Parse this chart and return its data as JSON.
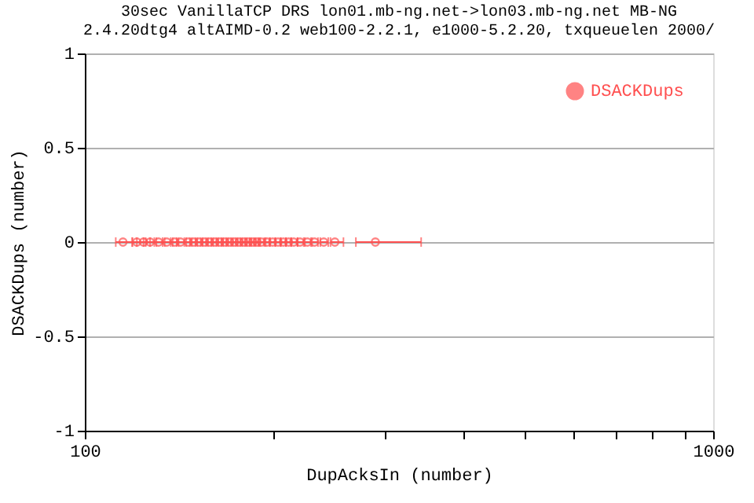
{
  "chart_data": {
    "type": "scatter",
    "title": [
      "30sec VanillaTCP DRS lon01.mb-ng.net->lon03.mb-ng.net MB-NG",
      "2.4.20dtg4 altAIMD-0.2 web100-2.2.1, e1000-5.2.20, txqueuelen 2000/"
    ],
    "xlabel": "DupAcksIn (number)",
    "ylabel": "DSACKDups (number)",
    "x": [
      115,
      121,
      124,
      127,
      131,
      135,
      139,
      142,
      146,
      149,
      152,
      155,
      158,
      161,
      164,
      167,
      170,
      173,
      176,
      179,
      182,
      185,
      188,
      191,
      195,
      199,
      203,
      207,
      211,
      215,
      220,
      226,
      232,
      240,
      250,
      290
    ],
    "series": [
      {
        "name": "DSACKDups",
        "color": "#ff5050",
        "values": [
          0,
          0,
          0,
          0,
          0,
          0,
          0,
          0,
          0,
          0,
          0,
          0,
          0,
          0,
          0,
          0,
          0,
          0,
          0,
          0,
          0,
          0,
          0,
          0,
          0,
          0,
          0,
          0,
          0,
          0,
          0,
          0,
          0,
          0,
          0,
          0
        ],
        "xerrors": [
          [
            112,
            119
          ],
          [
            119,
            124
          ],
          [
            121,
            127
          ],
          [
            125,
            130
          ],
          [
            129,
            134
          ],
          [
            133,
            138
          ],
          [
            137,
            141
          ],
          [
            140,
            145
          ],
          [
            144,
            148
          ],
          [
            147,
            151
          ],
          [
            150,
            154
          ],
          [
            153,
            157
          ],
          [
            156,
            160
          ],
          [
            159,
            163
          ],
          [
            162,
            166
          ],
          [
            165,
            169
          ],
          [
            168,
            172
          ],
          [
            171,
            175
          ],
          [
            174,
            178
          ],
          [
            177,
            181
          ],
          [
            180,
            184
          ],
          [
            183,
            187
          ],
          [
            186,
            190
          ],
          [
            189,
            194
          ],
          [
            193,
            197
          ],
          [
            197,
            201
          ],
          [
            201,
            205
          ],
          [
            205,
            209
          ],
          [
            209,
            213
          ],
          [
            213,
            218
          ],
          [
            218,
            223
          ],
          [
            224,
            229
          ],
          [
            230,
            235
          ],
          [
            237,
            244
          ],
          [
            246,
            258
          ],
          [
            270,
            343
          ]
        ]
      }
    ],
    "xlim": [
      100,
      1000
    ],
    "log": "x",
    "xticks": [
      100,
      {
        "value": 200,
        "label": null
      },
      {
        "value": 300,
        "label": null
      },
      {
        "value": 400,
        "label": null
      },
      {
        "value": 500,
        "label": null
      },
      {
        "value": 600,
        "label": null
      },
      {
        "value": 700,
        "label": null
      },
      {
        "value": 800,
        "label": null
      },
      {
        "value": 900,
        "label": null
      },
      1000
    ],
    "ylim": [
      -1,
      1
    ],
    "yticks": [
      -1,
      -0.5,
      0,
      0.5,
      1
    ],
    "grid": "y",
    "legend": "top right",
    "marker": "circle"
  }
}
